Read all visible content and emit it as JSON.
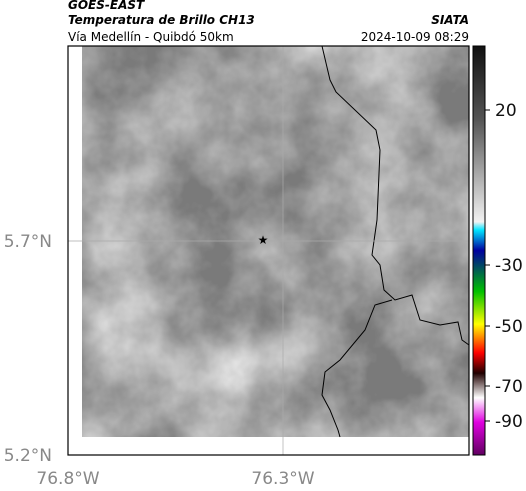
{
  "header": {
    "source": "GOES-EAST",
    "product": "Temperatura de Brillo CH13",
    "region": "Vía Medellín - Quibdó 50km",
    "agency": "SIATA",
    "timestamp": "2024-10-09 08:29"
  },
  "map": {
    "lat_labels": [
      "5.7°N",
      "5.2°N"
    ],
    "lon_labels": [
      "76.8°W",
      "76.3°W"
    ]
  },
  "colorbar": {
    "labels": [
      "20",
      "-30",
      "-50",
      "-70",
      "-90"
    ]
  }
}
